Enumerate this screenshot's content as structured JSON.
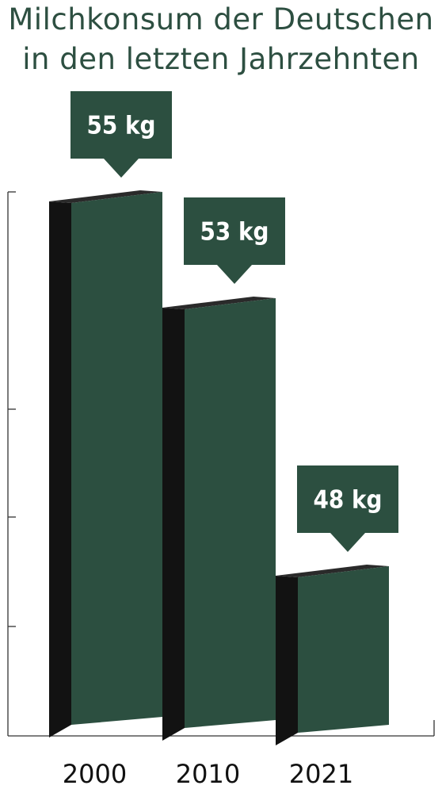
{
  "title_lines": [
    "Milchkonsum der Deutschen",
    "in den letzten Jahrzehnten"
  ],
  "colors": {
    "bar_front": "#2c4f40",
    "bar_side": "#121212",
    "bar_top": "#2a2a2a",
    "callout": "#2c4f40",
    "axis": "#333333"
  },
  "chart_data": {
    "type": "bar",
    "title": "Milchkonsum der Deutschen in den letzten Jahrzehnten",
    "categories": [
      "2000",
      "2010",
      "2021"
    ],
    "values": [
      55,
      53,
      48
    ],
    "data_labels": [
      "55 kg",
      "53 kg",
      "48 kg"
    ],
    "unit": "kg",
    "xlabel": "",
    "ylabel": "",
    "grid": false,
    "legend": "none"
  }
}
